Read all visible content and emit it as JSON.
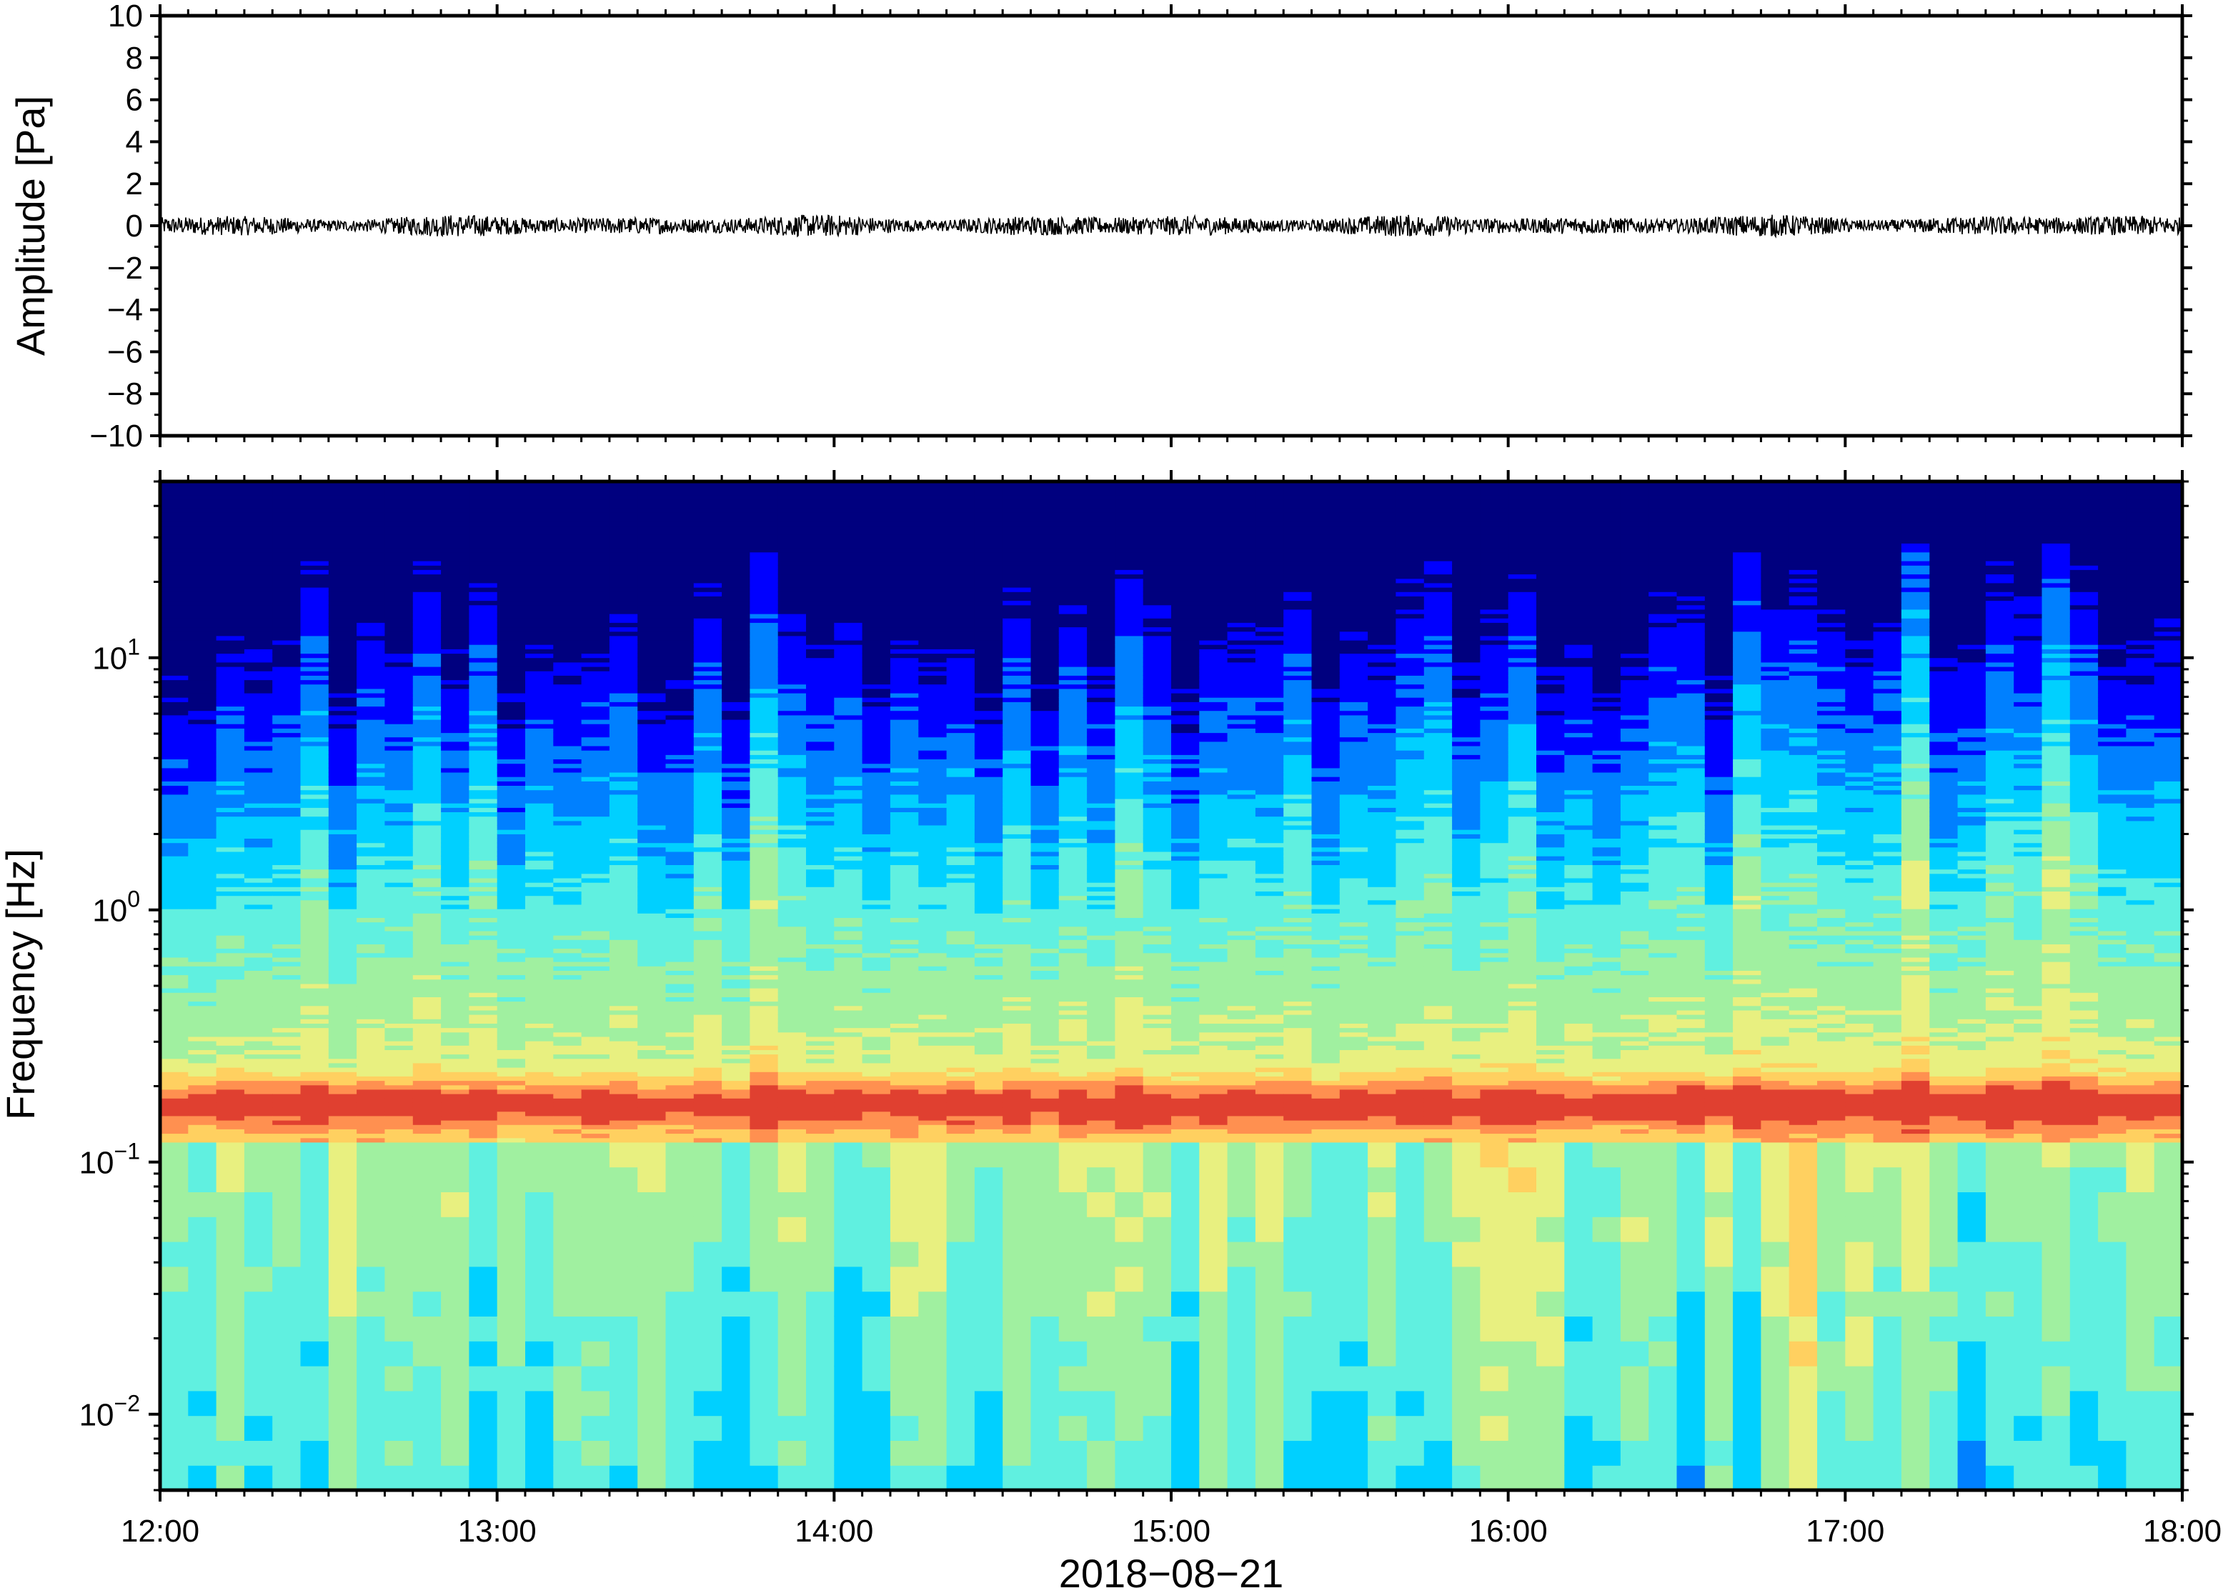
{
  "chart_data": [
    {
      "type": "line",
      "panel": "waveform",
      "title": "",
      "xlabel": "",
      "ylabel": "Amplitude [Pa]",
      "xlim": [
        "12:00",
        "18:00"
      ],
      "ylim": [
        -10,
        10
      ],
      "y_ticks": [
        10,
        8,
        6,
        4,
        2,
        0,
        -2,
        -4,
        -6,
        -8,
        -10
      ],
      "y_tick_labels": [
        "10",
        "8",
        "6",
        "4",
        "2",
        "0",
        "−2",
        "−4",
        "−6",
        "−8",
        "−10"
      ],
      "grid": false,
      "series": [
        {
          "color": "#000000",
          "description_values": {
            "mean": 0,
            "typical_peak_amplitude": 0.4,
            "max_peak_amplitude": 0.6
          }
        }
      ]
    },
    {
      "type": "heatmap",
      "panel": "spectrogram",
      "title": "",
      "xlabel": "2018−08−21",
      "ylabel": "Frequency [Hz]",
      "x_ticks": [
        "12:00",
        "13:00",
        "14:00",
        "15:00",
        "16:00",
        "17:00",
        "18:00"
      ],
      "y_scale": "log",
      "ylim": [
        0.005,
        50
      ],
      "y_ticks": [
        0.01,
        0.1,
        1,
        10
      ],
      "y_tick_labels": [
        {
          "base": "10",
          "exp": "−2"
        },
        {
          "base": "10",
          "exp": "−1"
        },
        {
          "base": "10",
          "exp": "0"
        },
        {
          "base": "10",
          "exp": "1"
        }
      ],
      "colormap": [
        "#00007f",
        "#0000ff",
        "#0080ff",
        "#00d0ff",
        "#60f0e0",
        "#a0f0a0",
        "#e8f080",
        "#ffd060",
        "#ff9050",
        "#e04030"
      ],
      "features": {
        "microbarom_band_hz": [
          0.13,
          0.2
        ],
        "microbarom_peak_hz": 0.17
      }
    }
  ]
}
